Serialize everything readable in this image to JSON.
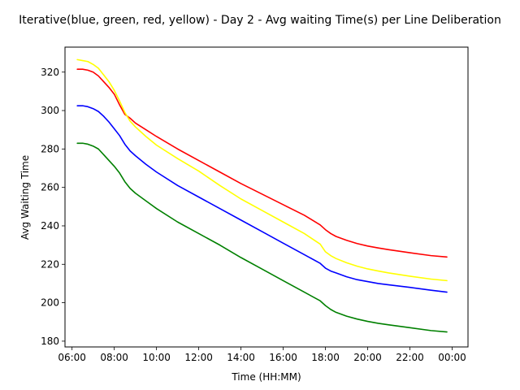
{
  "chart_data": {
    "type": "line",
    "title": "Iterative(blue, green, red, yellow) - Day 2 - Avg waiting Time(s) per Line Deliberation",
    "xlabel": "Time (HH:MM)",
    "ylabel": "Avg Waiting Time",
    "xlim": [
      "05:40",
      "00:45"
    ],
    "ylim": [
      177,
      333
    ],
    "x_ticks": [
      "06:00",
      "08:00",
      "10:00",
      "12:00",
      "14:00",
      "16:00",
      "18:00",
      "20:00",
      "22:00",
      "00:00"
    ],
    "y_ticks": [
      180,
      200,
      220,
      240,
      260,
      280,
      300,
      320
    ],
    "grid": false,
    "legend": "none",
    "x": [
      "06:15",
      "06:30",
      "06:45",
      "07:00",
      "07:15",
      "07:30",
      "07:45",
      "08:00",
      "08:15",
      "08:30",
      "08:45",
      "09:00",
      "09:30",
      "10:00",
      "11:00",
      "12:00",
      "13:00",
      "14:00",
      "15:00",
      "16:00",
      "17:00",
      "17:45",
      "18:00",
      "18:15",
      "18:30",
      "19:00",
      "19:30",
      "20:00",
      "20:30",
      "21:00",
      "22:00",
      "23:00",
      "23:45"
    ],
    "series": [
      {
        "color": "#0000ff",
        "values": [
          302.5,
          302.5,
          302,
          301,
          299.5,
          297,
          294,
          290.5,
          287,
          282.5,
          279,
          276.5,
          272,
          268,
          261,
          255,
          249,
          243,
          237,
          231,
          225,
          220.5,
          218,
          216.5,
          215.5,
          213.5,
          212,
          211,
          210,
          209.3,
          208,
          206.5,
          205.5
        ]
      },
      {
        "color": "#008000",
        "values": [
          283,
          283,
          282.5,
          281.5,
          280,
          277,
          274,
          271,
          267.5,
          263,
          259.5,
          257,
          253,
          249,
          242,
          236,
          230,
          223.5,
          217.5,
          211.5,
          205.5,
          201,
          198.5,
          196.5,
          195,
          193,
          191.5,
          190.3,
          189.3,
          188.5,
          187,
          185.5,
          184.8
        ]
      },
      {
        "color": "#ff0000",
        "values": [
          321.5,
          321.5,
          321,
          320,
          318,
          315,
          312,
          308.5,
          303,
          298,
          296,
          293.5,
          290,
          286.5,
          280,
          274,
          268,
          262,
          256.5,
          251,
          245.5,
          240.5,
          238,
          236,
          234.5,
          232.5,
          230.8,
          229.5,
          228.5,
          227.6,
          226,
          224.5,
          223.8
        ]
      },
      {
        "color": "#ffff00",
        "values": [
          326.5,
          326,
          325.5,
          324,
          322,
          318.5,
          315,
          310.5,
          305,
          299,
          294.5,
          291.5,
          286.5,
          282,
          275,
          268.5,
          261,
          254,
          248,
          242,
          236,
          230.5,
          226.5,
          224.5,
          223,
          220.8,
          219,
          217.6,
          216.5,
          215.5,
          213.8,
          212.3,
          211.5
        ]
      }
    ]
  }
}
